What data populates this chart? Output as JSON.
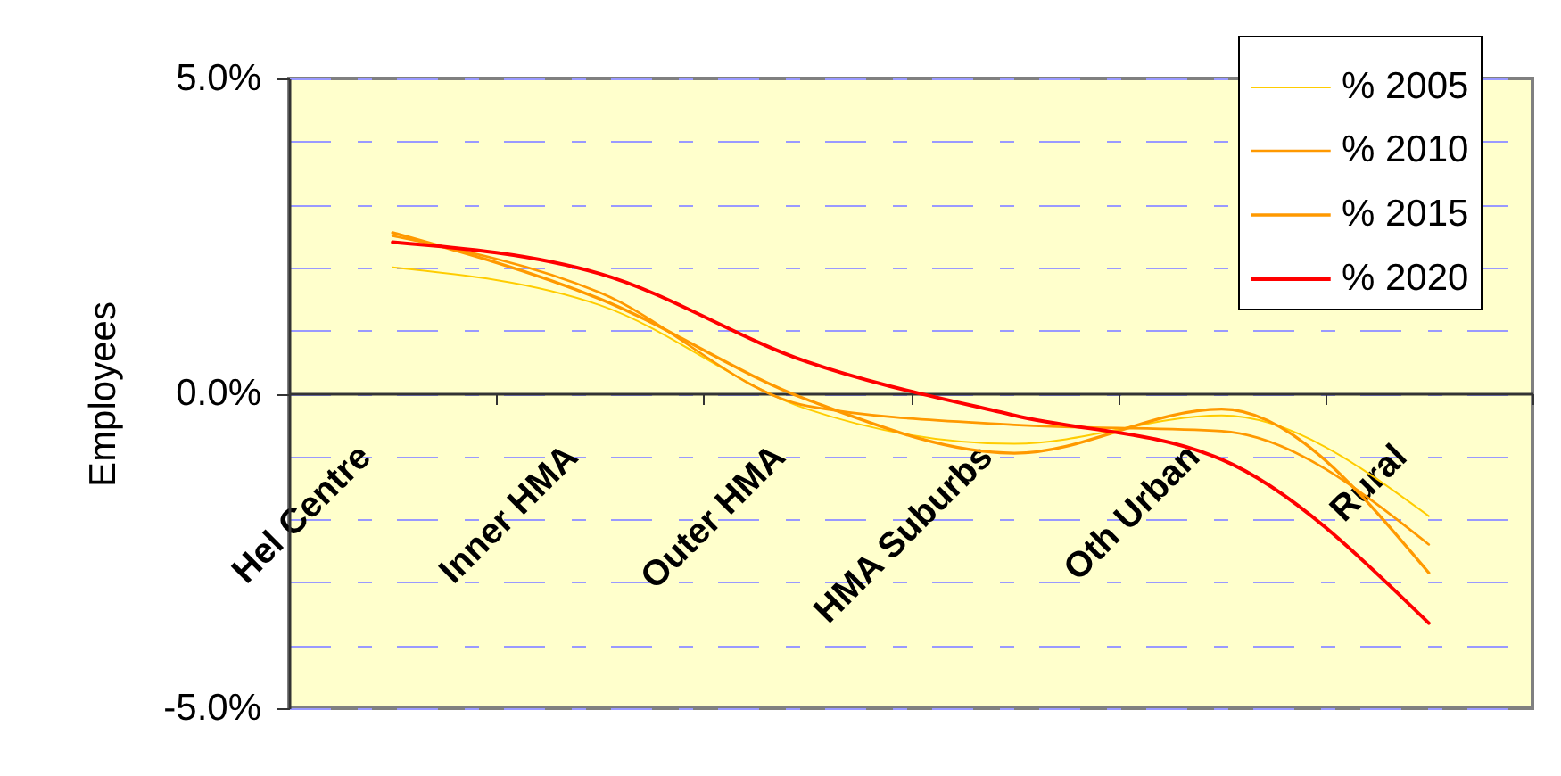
{
  "chart_data": {
    "type": "line",
    "ylabel": "Employees",
    "categories": [
      "Hel Centre",
      "Inner HMA",
      "Outer HMA",
      "HMA Suburbs",
      "Oth Urban",
      "Rural"
    ],
    "series": [
      {
        "name": "% 2005",
        "color": "#ffcc00",
        "values": [
          2.0,
          1.4,
          -0.25,
          -0.8,
          -0.35,
          -1.95
        ]
      },
      {
        "name": "% 2010",
        "color": "#ff9900",
        "values": [
          2.5,
          1.6,
          -0.2,
          -0.5,
          -0.6,
          -2.4
        ]
      },
      {
        "name": "% 2015",
        "color": "#ff9900",
        "values": [
          2.55,
          1.5,
          -0.1,
          -0.95,
          -0.25,
          -2.85
        ]
      },
      {
        "name": "% 2020",
        "color": "#ff0000",
        "values": [
          2.4,
          1.9,
          0.5,
          -0.35,
          -1.05,
          -3.65
        ]
      }
    ],
    "ylim": [
      -5,
      5
    ],
    "yticks": [
      {
        "value": 5,
        "label": "5.0%"
      },
      {
        "value": 4,
        "label": null
      },
      {
        "value": 3,
        "label": null
      },
      {
        "value": 2,
        "label": null
      },
      {
        "value": 1,
        "label": null
      },
      {
        "value": 0,
        "label": "0.0%"
      },
      {
        "value": -1,
        "label": null
      },
      {
        "value": -2,
        "label": null
      },
      {
        "value": -3,
        "label": null
      },
      {
        "value": -4,
        "label": null
      },
      {
        "value": -5,
        "label": "-5.0%"
      }
    ],
    "grid": "y",
    "legend": "top right"
  }
}
